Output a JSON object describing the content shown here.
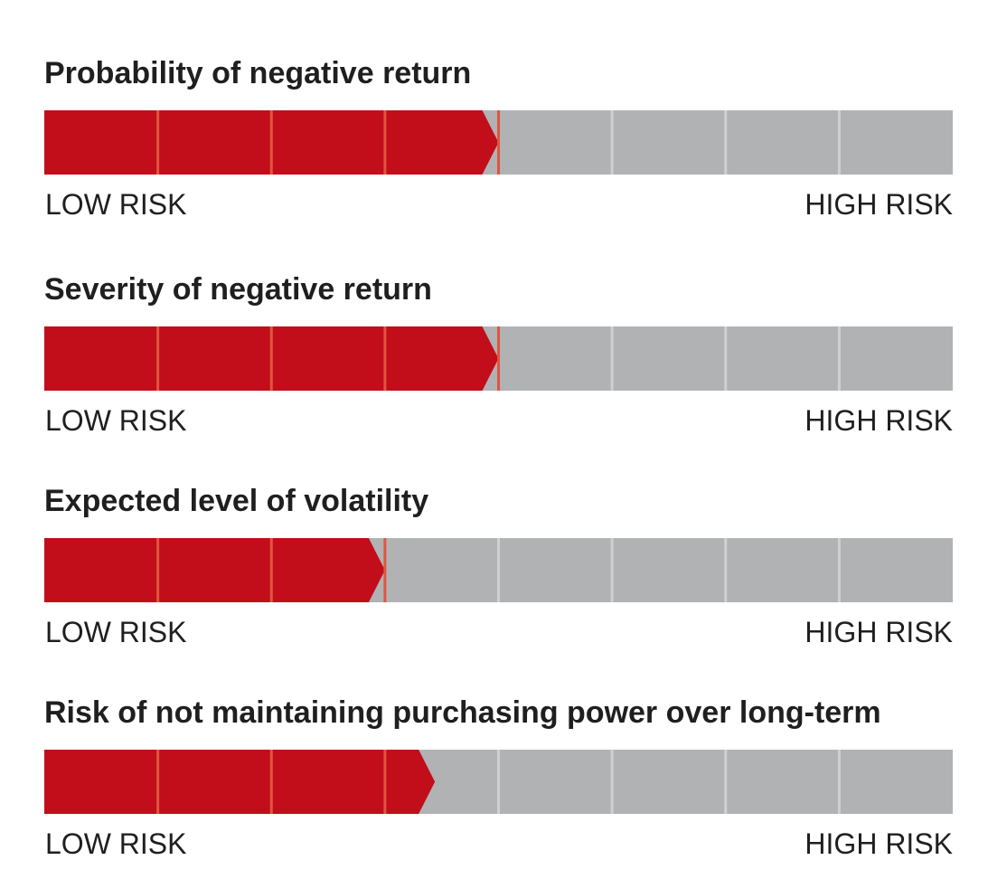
{
  "colors": {
    "filled": "#c20e1a",
    "empty": "#b1b2b4",
    "divider_on_fill": "#e0553f",
    "divider_on_empty": "#cfd0d2"
  },
  "chart_data": [
    {
      "type": "bar",
      "title": "Probability of negative return",
      "scale_min_label": "LOW RISK",
      "scale_max_label": "HIGH RISK",
      "segments": 8,
      "value": 0.5,
      "xlim": [
        0,
        1
      ]
    },
    {
      "type": "bar",
      "title": "Severity of negative return",
      "scale_min_label": "LOW RISK",
      "scale_max_label": "HIGH RISK",
      "segments": 8,
      "value": 0.5,
      "xlim": [
        0,
        1
      ]
    },
    {
      "type": "bar",
      "title": "Expected level of volatility",
      "scale_min_label": "LOW RISK",
      "scale_max_label": "HIGH RISK",
      "segments": 8,
      "value": 0.375,
      "xlim": [
        0,
        1
      ]
    },
    {
      "type": "bar",
      "title": "Risk of not maintaining purchasing power over long-term",
      "scale_min_label": "LOW RISK",
      "scale_max_label": "HIGH RISK",
      "segments": 8,
      "value": 0.43,
      "xlim": [
        0,
        1
      ]
    }
  ]
}
